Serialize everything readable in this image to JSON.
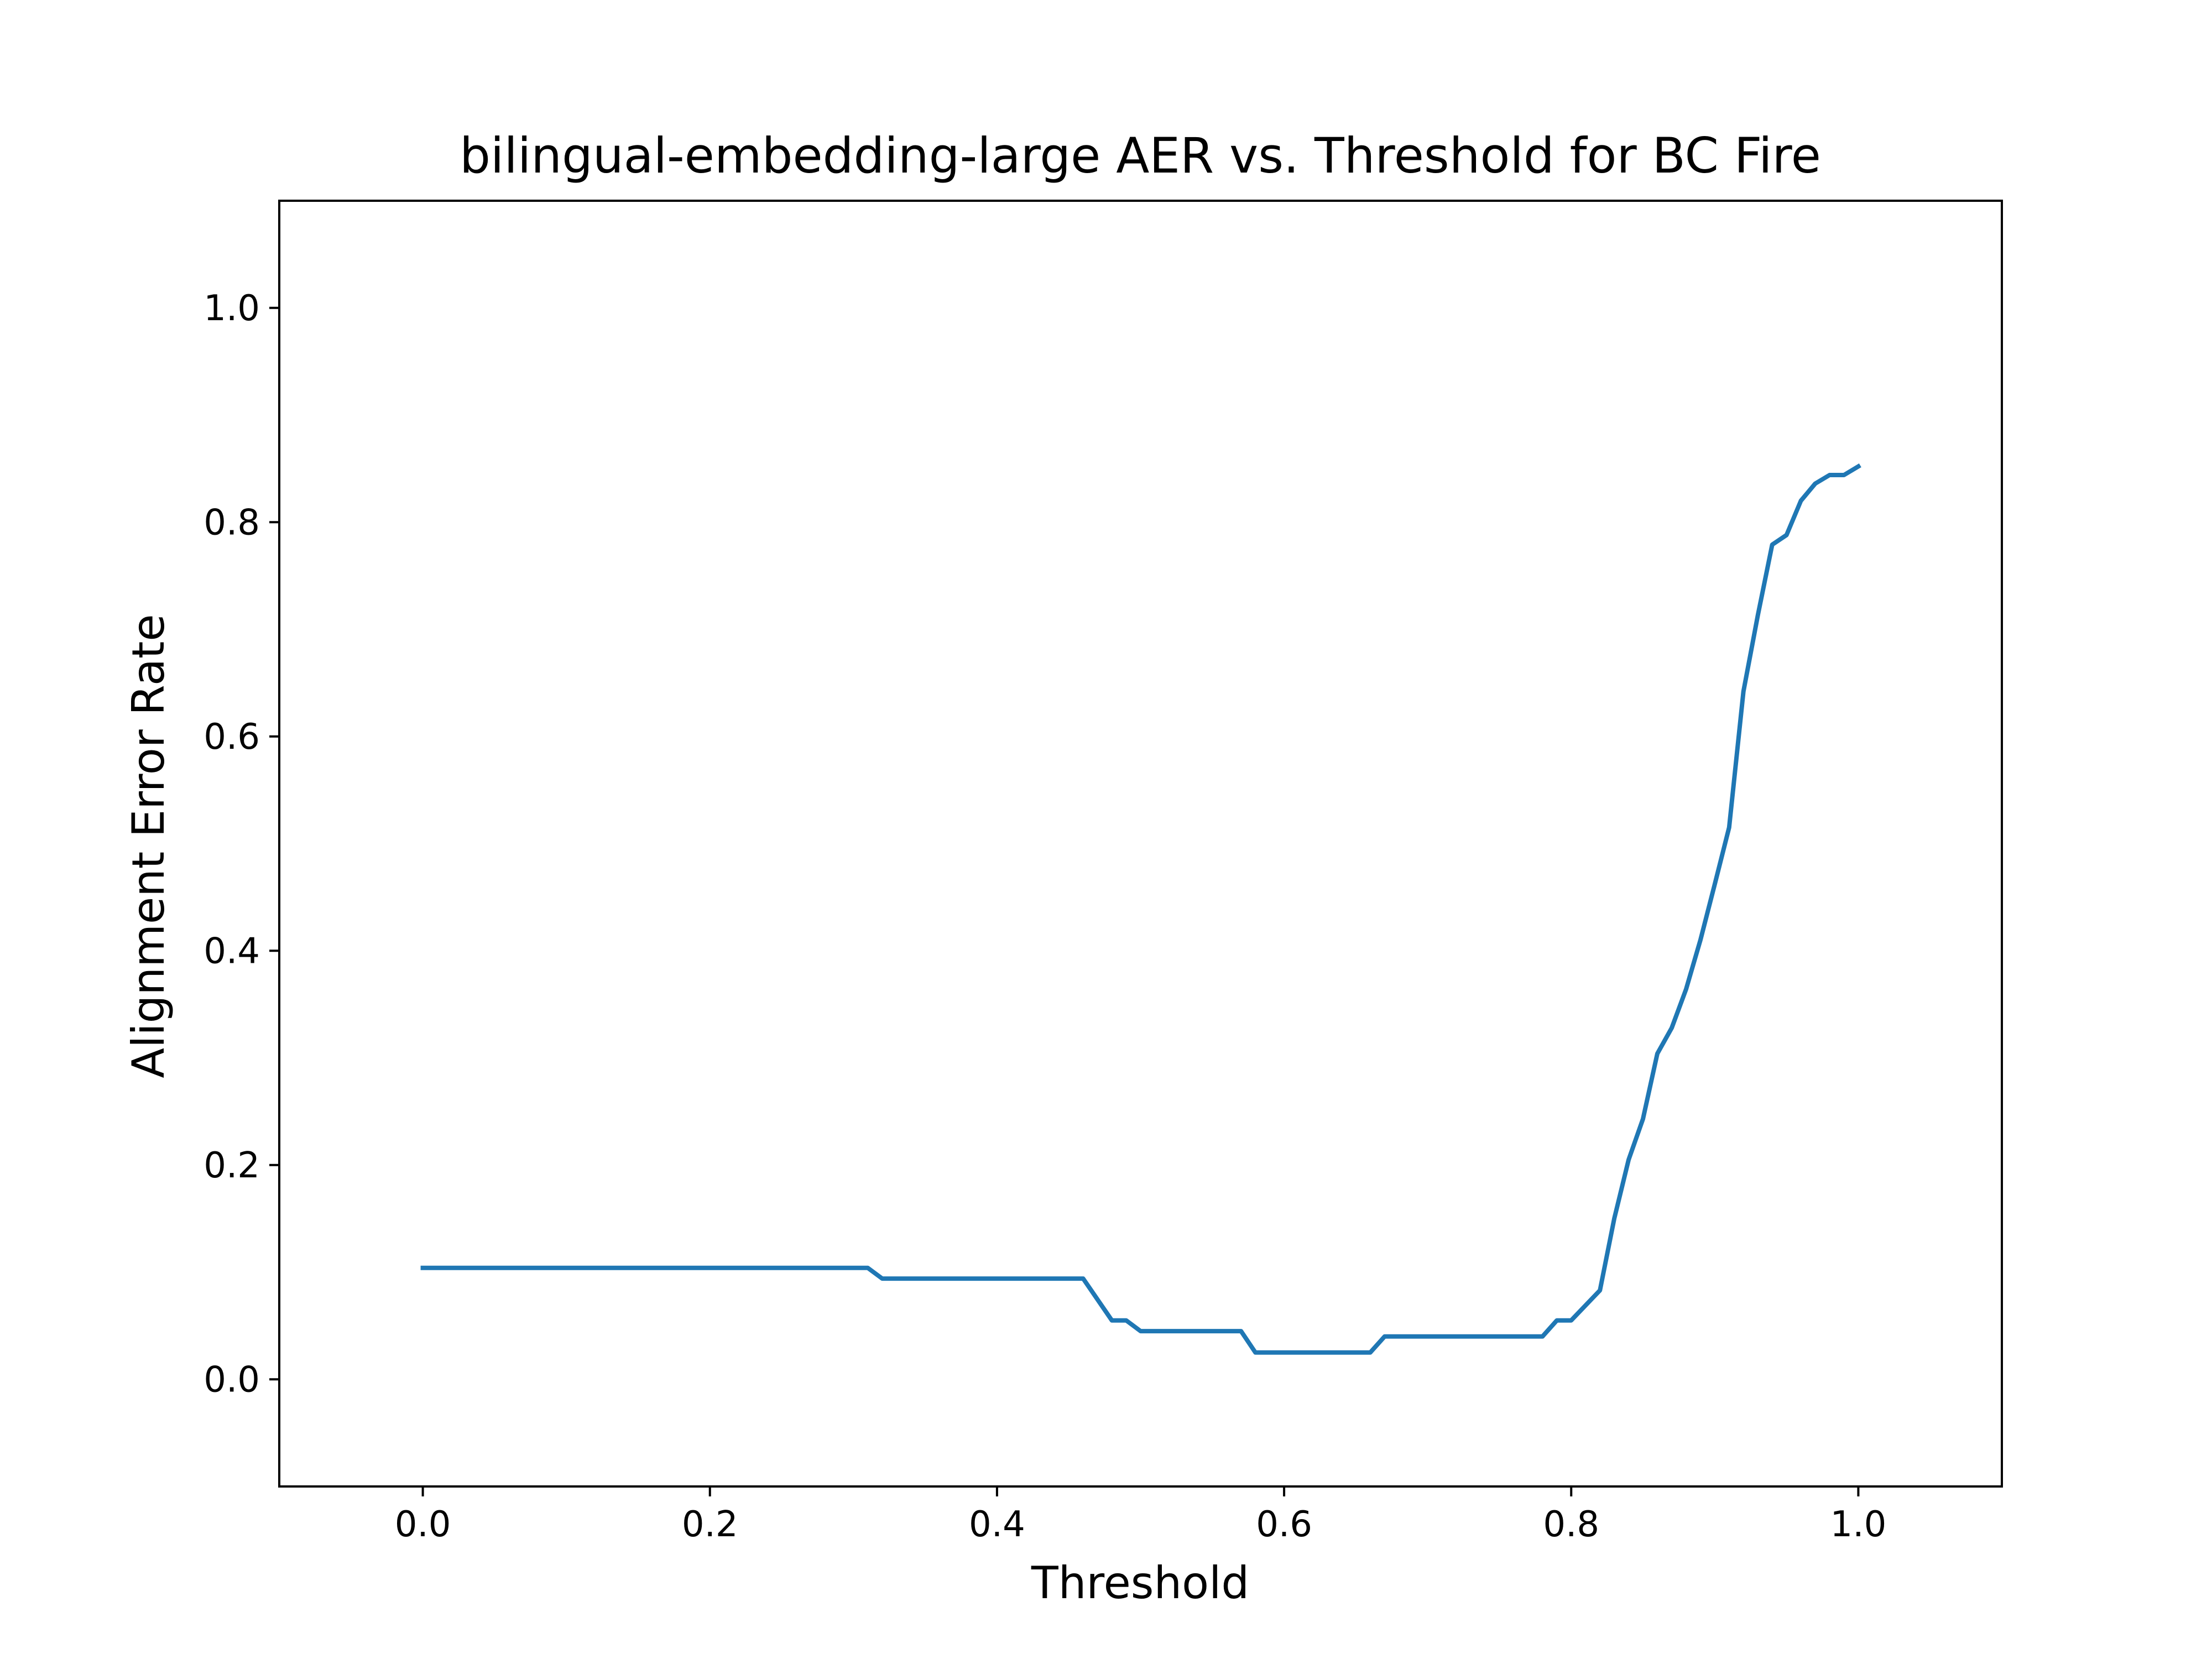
{
  "chart_data": {
    "type": "line",
    "title": "bilingual-embedding-large AER vs. Threshold for BC Fire",
    "xlabel": "Threshold",
    "ylabel": "Alignment Error Rate",
    "xlim": [
      -0.1,
      1.1
    ],
    "ylim": [
      -0.1,
      1.1
    ],
    "xticks": [
      0.0,
      0.2,
      0.4,
      0.6,
      0.8,
      1.0
    ],
    "xtick_labels": [
      "0.0",
      "0.2",
      "0.4",
      "0.6",
      "0.8",
      "1.0"
    ],
    "yticks": [
      0.0,
      0.2,
      0.4,
      0.6,
      0.8,
      1.0
    ],
    "ytick_labels": [
      "0.0",
      "0.2",
      "0.4",
      "0.6",
      "0.8",
      "1.0"
    ],
    "grid": false,
    "color": "#1f77b4",
    "series": [
      {
        "x": [
          0.0,
          0.31,
          0.32,
          0.46,
          0.48,
          0.49,
          0.5,
          0.57,
          0.58,
          0.66,
          0.67,
          0.78,
          0.79,
          0.8,
          0.82,
          0.83,
          0.84,
          0.85,
          0.86,
          0.87,
          0.88,
          0.89,
          0.9,
          0.91,
          0.92,
          0.93,
          0.94,
          0.95,
          0.96,
          0.97,
          0.98,
          0.99,
          1.0
        ],
        "y": [
          0.104,
          0.104,
          0.094,
          0.094,
          0.055,
          0.055,
          0.045,
          0.045,
          0.025,
          0.025,
          0.04,
          0.04,
          0.055,
          0.055,
          0.083,
          0.15,
          0.205,
          0.243,
          0.304,
          0.328,
          0.364,
          0.41,
          0.462,
          0.515,
          0.642,
          0.713,
          0.779,
          0.788,
          0.82,
          0.836,
          0.844,
          0.844,
          0.852
        ]
      }
    ]
  }
}
